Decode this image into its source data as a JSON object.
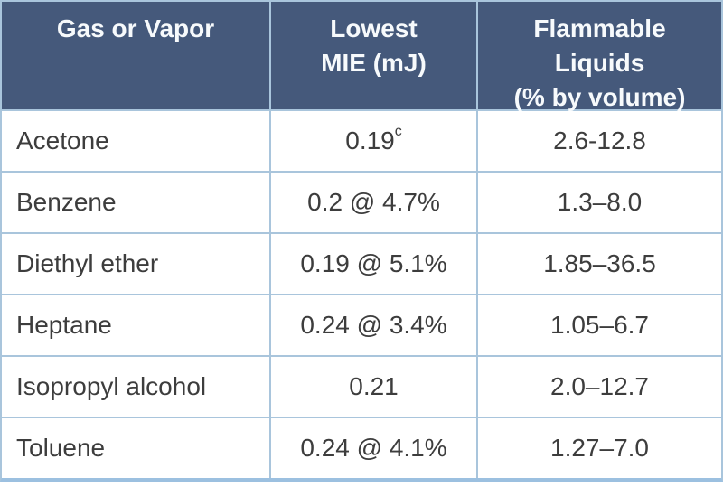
{
  "table": {
    "headers": [
      "Gas or Vapor",
      "Lowest\nMIE (mJ)",
      "Flammable\nLiquids\n(% by volume)"
    ],
    "rows": [
      {
        "gas": "Acetone",
        "mie": "0.19",
        "mie_sup": "c",
        "range": "2.6-12.8"
      },
      {
        "gas": "Benzene",
        "mie": "0.2 @ 4.7%",
        "mie_sup": "",
        "range": "1.3–8.0"
      },
      {
        "gas": "Diethyl ether",
        "mie": "0.19 @ 5.1%",
        "mie_sup": "",
        "range": "1.85–36.5"
      },
      {
        "gas": "Heptane",
        "mie": "0.24 @ 3.4%",
        "mie_sup": "",
        "range": "1.05–6.7"
      },
      {
        "gas": "Isopropyl alcohol",
        "mie": "0.21",
        "mie_sup": "",
        "range": "2.0–12.7"
      },
      {
        "gas": "Toluene",
        "mie": "0.24 @ 4.1%",
        "mie_sup": "",
        "range": "1.27–7.0"
      }
    ]
  },
  "colors": {
    "header_bg": "#45597b",
    "header_text": "#f7fafc",
    "body_text": "#3d3d3d",
    "border": "#a9c5dc",
    "border_strong": "#9cc0e0",
    "cell_bg": "#ffffff"
  },
  "chart_data": {
    "type": "table",
    "title": "",
    "columns": [
      "Gas or Vapor",
      "Lowest MIE (mJ)",
      "Flammable Liquids (% by volume)"
    ],
    "rows": [
      [
        "Acetone",
        "0.19c",
        "2.6-12.8"
      ],
      [
        "Benzene",
        "0.2 @ 4.7%",
        "1.3–8.0"
      ],
      [
        "Diethyl ether",
        "0.19 @ 5.1%",
        "1.85–36.5"
      ],
      [
        "Heptane",
        "0.24 @ 3.4%",
        "1.05–6.7"
      ],
      [
        "Isopropyl alcohol",
        "0.21",
        "2.0–12.7"
      ],
      [
        "Toluene",
        "0.24 @ 4.1%",
        "1.27–7.0"
      ]
    ],
    "layout_hints": {
      "header_style": "dark slate blue background, white bold text, top-aligned, centered",
      "grid": "light blue cell borders, thicker bottom border",
      "column_alignment": [
        "left",
        "center",
        "center"
      ]
    }
  }
}
